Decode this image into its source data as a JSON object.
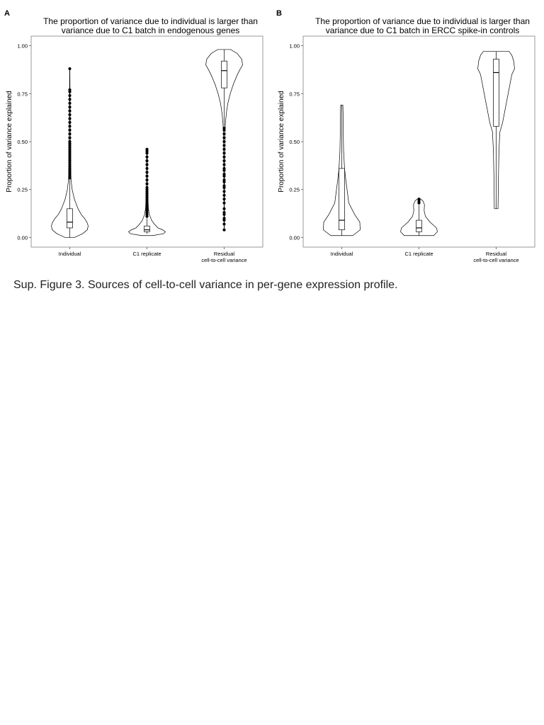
{
  "caption": "Sup. Figure 3. Sources of cell-to-cell variance in per-gene expression profile.",
  "chart_data": [
    {
      "type": "violin",
      "panel_label": "A",
      "title": "The proportion of variance due to individual is larger than variance due to C1 batch in endogenous genes",
      "title_lines": [
        "The proportion of variance due to individual is larger than",
        "variance due to C1 batch in endogenous genes"
      ],
      "xlabel": "",
      "ylabel": "Proportion of variance explained",
      "ylim": [
        -0.05,
        1.05
      ],
      "yticks": [
        "0.00",
        "0.25",
        "0.50",
        "0.75",
        "1.00"
      ],
      "grid": false,
      "categories": [
        {
          "lines": [
            "Individual"
          ]
        },
        {
          "lines": [
            "C1 replicate"
          ]
        },
        {
          "lines": [
            "Residual",
            "cell-to-cell variance"
          ]
        }
      ],
      "series": [
        {
          "box": {
            "min": 0.0,
            "q1": 0.05,
            "median": 0.08,
            "q3": 0.15,
            "max": 0.3
          },
          "violin": [
            [
              0.0,
              0.25
            ],
            [
              0.02,
              0.7
            ],
            [
              0.04,
              0.95
            ],
            [
              0.06,
              1.0
            ],
            [
              0.08,
              0.93
            ],
            [
              0.1,
              0.8
            ],
            [
              0.12,
              0.62
            ],
            [
              0.15,
              0.45
            ],
            [
              0.2,
              0.25
            ],
            [
              0.25,
              0.13
            ],
            [
              0.3,
              0.07
            ],
            [
              0.4,
              0.04
            ],
            [
              0.5,
              0.03
            ],
            [
              0.6,
              0.02
            ],
            [
              0.7,
              0.015
            ],
            [
              0.8,
              0.01
            ],
            [
              0.88,
              0.005
            ]
          ],
          "outliers": [
            0.31,
            0.32,
            0.33,
            0.34,
            0.35,
            0.36,
            0.37,
            0.38,
            0.39,
            0.4,
            0.41,
            0.42,
            0.43,
            0.44,
            0.45,
            0.46,
            0.47,
            0.48,
            0.49,
            0.5,
            0.52,
            0.54,
            0.56,
            0.58,
            0.6,
            0.62,
            0.64,
            0.66,
            0.68,
            0.7,
            0.72,
            0.74,
            0.76,
            0.77,
            0.88
          ]
        },
        {
          "box": {
            "min": 0.02,
            "q1": 0.03,
            "median": 0.04,
            "q3": 0.06,
            "max": 0.1
          },
          "violin": [
            [
              0.01,
              0.3
            ],
            [
              0.02,
              0.9
            ],
            [
              0.03,
              1.0
            ],
            [
              0.04,
              0.85
            ],
            [
              0.05,
              0.6
            ],
            [
              0.07,
              0.4
            ],
            [
              0.09,
              0.25
            ],
            [
              0.12,
              0.13
            ],
            [
              0.15,
              0.08
            ],
            [
              0.2,
              0.05
            ],
            [
              0.3,
              0.03
            ],
            [
              0.4,
              0.02
            ],
            [
              0.46,
              0.01
            ]
          ],
          "outliers": [
            0.11,
            0.12,
            0.13,
            0.14,
            0.15,
            0.16,
            0.17,
            0.18,
            0.19,
            0.2,
            0.21,
            0.22,
            0.23,
            0.24,
            0.25,
            0.26,
            0.28,
            0.3,
            0.32,
            0.34,
            0.36,
            0.38,
            0.4,
            0.42,
            0.44,
            0.45,
            0.46
          ]
        },
        {
          "box": {
            "min": 0.58,
            "q1": 0.78,
            "median": 0.87,
            "q3": 0.92,
            "max": 0.98
          },
          "violin": [
            [
              0.05,
              0.005
            ],
            [
              0.2,
              0.01
            ],
            [
              0.4,
              0.02
            ],
            [
              0.55,
              0.04
            ],
            [
              0.6,
              0.07
            ],
            [
              0.65,
              0.12
            ],
            [
              0.7,
              0.2
            ],
            [
              0.75,
              0.33
            ],
            [
              0.8,
              0.5
            ],
            [
              0.85,
              0.72
            ],
            [
              0.88,
              0.88
            ],
            [
              0.9,
              1.0
            ],
            [
              0.93,
              0.95
            ],
            [
              0.96,
              0.7
            ],
            [
              0.98,
              0.35
            ]
          ],
          "outliers": [
            0.04,
            0.07,
            0.09,
            0.1,
            0.12,
            0.13,
            0.15,
            0.18,
            0.2,
            0.22,
            0.24,
            0.26,
            0.27,
            0.29,
            0.3,
            0.32,
            0.33,
            0.35,
            0.36,
            0.38,
            0.4,
            0.42,
            0.44,
            0.46,
            0.48,
            0.5,
            0.52,
            0.54,
            0.56,
            0.57
          ]
        }
      ]
    },
    {
      "type": "violin",
      "panel_label": "B",
      "title": "The proportion of variance due to individual is larger than variance due to C1 batch in ERCC spike-in controls",
      "title_lines": [
        "The proportion of variance due to individual is larger than",
        "variance due to C1 batch in ERCC spike-in controls"
      ],
      "xlabel": "",
      "ylabel": "Proportion of variance explained",
      "ylim": [
        -0.05,
        1.05
      ],
      "yticks": [
        "0.00",
        "0.25",
        "0.50",
        "0.75",
        "1.00"
      ],
      "grid": false,
      "categories": [
        {
          "lines": [
            "Individual"
          ]
        },
        {
          "lines": [
            "C1 replicate"
          ]
        },
        {
          "lines": [
            "Residual",
            "cell-to-cell variance"
          ]
        }
      ],
      "series": [
        {
          "box": {
            "min": 0.01,
            "q1": 0.04,
            "median": 0.09,
            "q3": 0.36,
            "max": 0.69
          },
          "violin": [
            [
              0.01,
              0.6
            ],
            [
              0.04,
              1.0
            ],
            [
              0.08,
              0.98
            ],
            [
              0.12,
              0.7
            ],
            [
              0.18,
              0.38
            ],
            [
              0.24,
              0.3
            ],
            [
              0.3,
              0.22
            ],
            [
              0.36,
              0.15
            ],
            [
              0.45,
              0.1
            ],
            [
              0.55,
              0.08
            ],
            [
              0.65,
              0.07
            ],
            [
              0.69,
              0.06
            ]
          ],
          "outliers": []
        },
        {
          "box": {
            "min": 0.01,
            "q1": 0.03,
            "median": 0.05,
            "q3": 0.09,
            "max": 0.17
          },
          "violin": [
            [
              0.01,
              0.8
            ],
            [
              0.03,
              1.0
            ],
            [
              0.05,
              0.95
            ],
            [
              0.08,
              0.6
            ],
            [
              0.11,
              0.35
            ],
            [
              0.14,
              0.28
            ],
            [
              0.17,
              0.3
            ],
            [
              0.19,
              0.22
            ],
            [
              0.2,
              0.1
            ]
          ],
          "outliers": [
            0.18,
            0.19,
            0.2
          ]
        },
        {
          "box": {
            "min": 0.15,
            "q1": 0.58,
            "median": 0.86,
            "q3": 0.93,
            "max": 0.97
          },
          "violin": [
            [
              0.15,
              0.1
            ],
            [
              0.3,
              0.12
            ],
            [
              0.45,
              0.15
            ],
            [
              0.55,
              0.2
            ],
            [
              0.6,
              0.35
            ],
            [
              0.65,
              0.45
            ],
            [
              0.7,
              0.55
            ],
            [
              0.75,
              0.65
            ],
            [
              0.8,
              0.75
            ],
            [
              0.85,
              0.85
            ],
            [
              0.88,
              1.0
            ],
            [
              0.92,
              0.95
            ],
            [
              0.95,
              0.85
            ],
            [
              0.97,
              0.7
            ]
          ],
          "outliers": []
        }
      ]
    }
  ]
}
